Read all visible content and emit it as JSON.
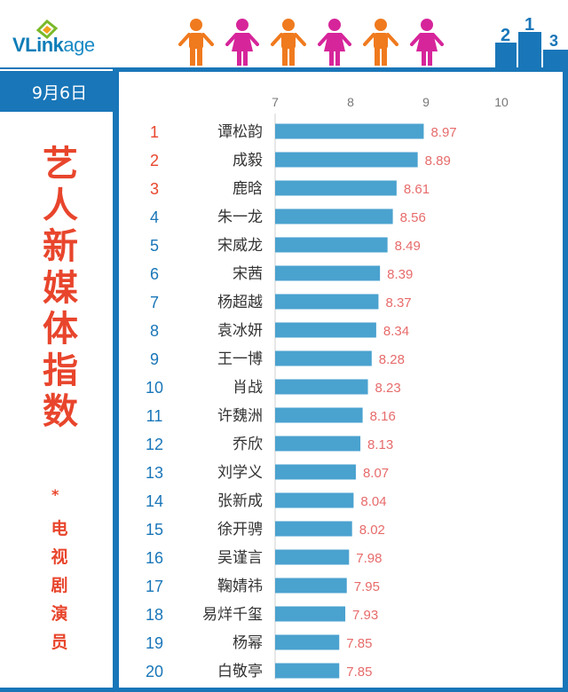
{
  "header": {
    "logo_text_bold": "VLink",
    "logo_text_light": "age",
    "logo_icon": "vlinkage-logo-icon",
    "people_icons": [
      "man-icon",
      "woman-icon",
      "man-icon",
      "woman-icon",
      "man-icon",
      "woman-icon"
    ],
    "podium_labels": [
      "2",
      "1",
      "3"
    ],
    "colors": {
      "man": "#f07a1e",
      "woman": "#d6259a",
      "podium": "#1976b8"
    }
  },
  "sidebar": {
    "date": "9月6日",
    "title_chars": [
      "艺",
      "人",
      "新",
      "媒",
      "体",
      "指",
      "数"
    ],
    "star": "*",
    "subtitle_chars": [
      "电",
      "视",
      "剧",
      "演",
      "员"
    ]
  },
  "colors": {
    "accent_blue": "#1976b8",
    "bar": "#4aa2cf",
    "rank_top": "#e8452c",
    "rank_other": "#1976b8",
    "value_label": "#e76b6b",
    "title_red": "#e8452c"
  },
  "chart_data": {
    "type": "bar",
    "orientation": "horizontal",
    "xlim": [
      7,
      10
    ],
    "xticks": [
      "7",
      "8",
      "9",
      "10"
    ],
    "grid": false,
    "ranks": [
      "1",
      "2",
      "3",
      "4",
      "5",
      "6",
      "7",
      "8",
      "9",
      "10",
      "11",
      "12",
      "13",
      "14",
      "15",
      "16",
      "17",
      "18",
      "19",
      "20"
    ],
    "categories": [
      "谭松韵",
      "成毅",
      "鹿晗",
      "朱一龙",
      "宋威龙",
      "宋茜",
      "杨超越",
      "袁冰妍",
      "王一博",
      "肖战",
      "许魏洲",
      "乔欣",
      "刘学义",
      "张新成",
      "徐开骋",
      "吴谨言",
      "鞠婧祎",
      "易烊千玺",
      "杨幂",
      "白敬亭"
    ],
    "values": [
      8.97,
      8.89,
      8.61,
      8.56,
      8.49,
      8.39,
      8.37,
      8.34,
      8.28,
      8.23,
      8.16,
      8.13,
      8.07,
      8.04,
      8.02,
      7.98,
      7.95,
      7.93,
      7.85,
      7.85
    ],
    "value_labels": [
      "8.97",
      "8.89",
      "8.61",
      "8.56",
      "8.49",
      "8.39",
      "8.37",
      "8.34",
      "8.28",
      "8.23",
      "8.16",
      "8.13",
      "8.07",
      "8.04",
      "8.02",
      "7.98",
      "7.95",
      "7.93",
      "7.85",
      "7.85"
    ]
  }
}
